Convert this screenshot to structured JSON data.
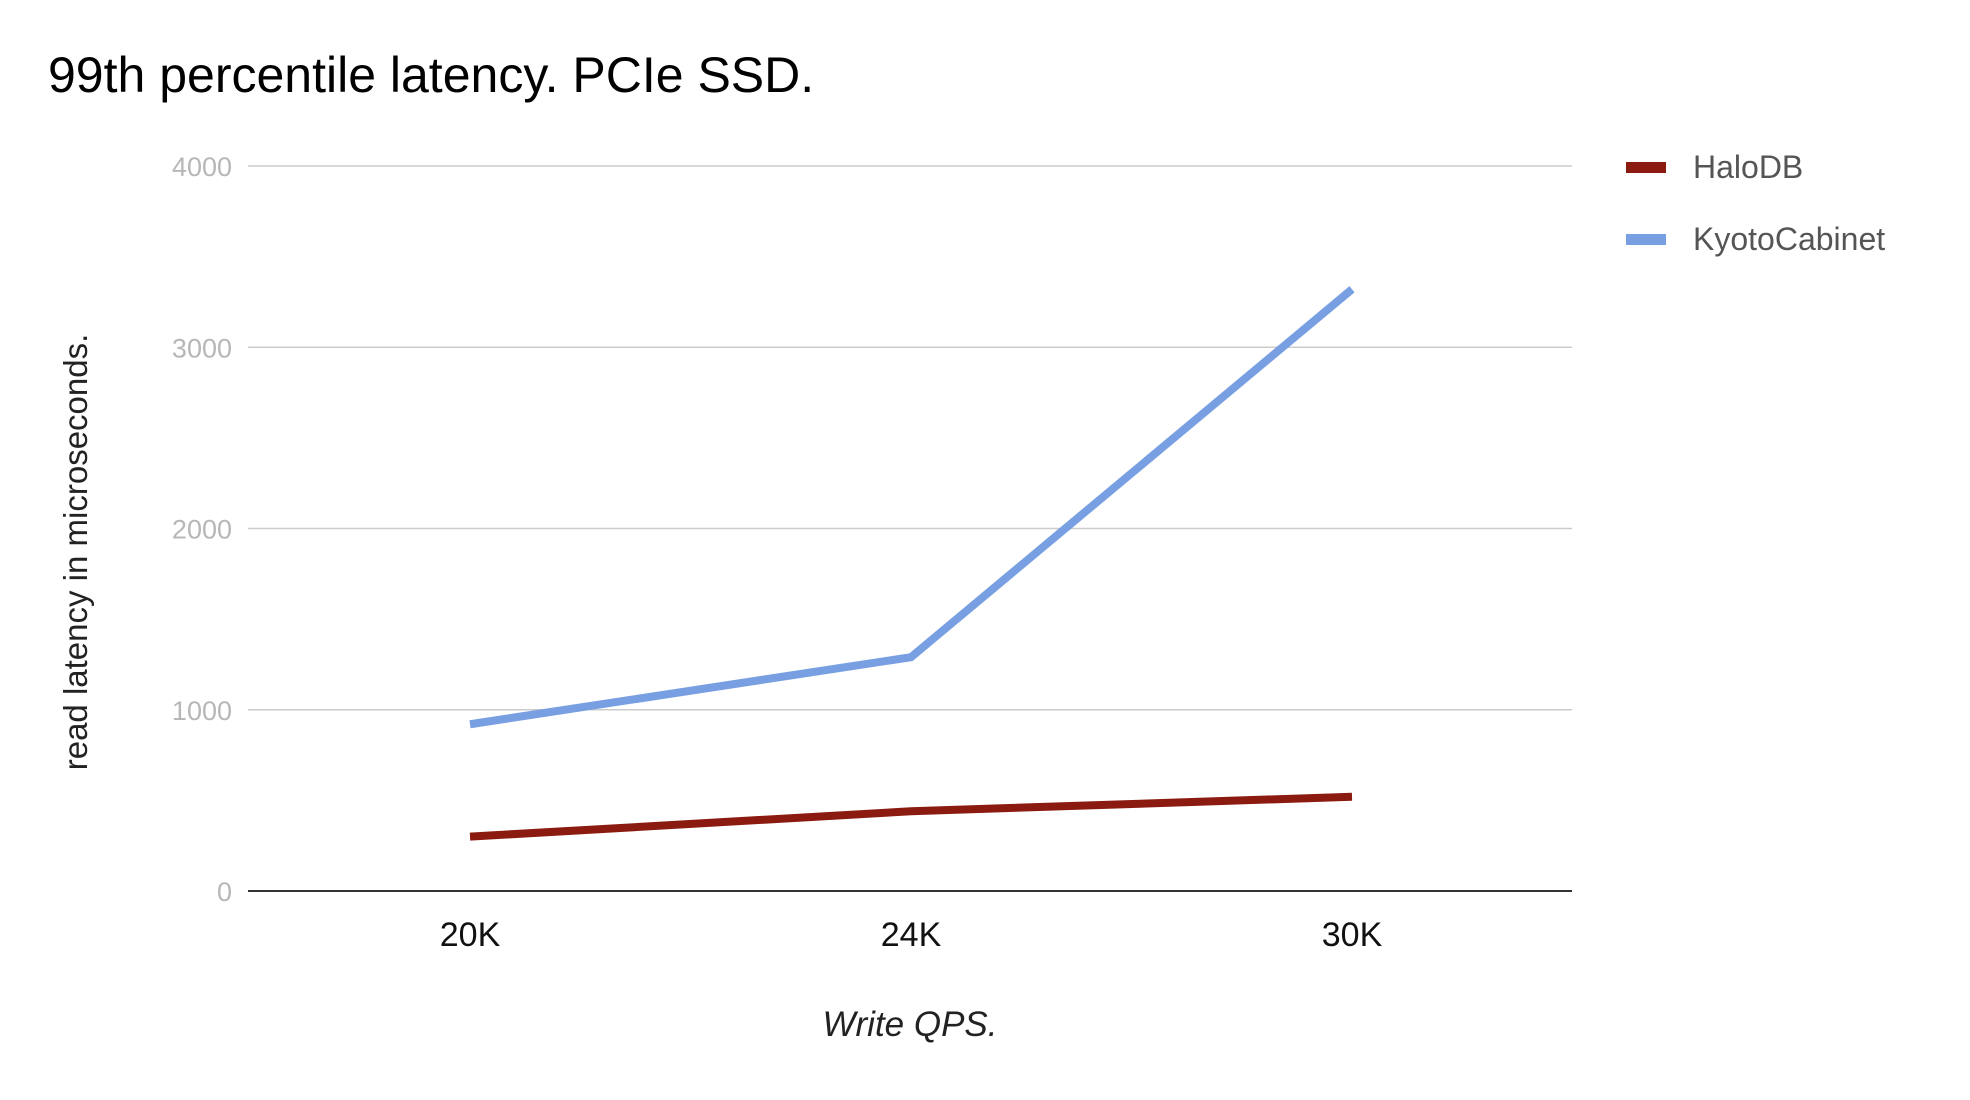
{
  "chart_data": {
    "type": "line",
    "title": "99th percentile latency. PCIe SSD.",
    "xlabel": "Write QPS.",
    "ylabel": "read latency in microseconds.",
    "categories": [
      "20K",
      "24K",
      "30K"
    ],
    "ylim": [
      0,
      4000
    ],
    "yticks": [
      0,
      1000,
      2000,
      3000,
      4000
    ],
    "grid": true,
    "legend_position": "right",
    "series": [
      {
        "name": "HaloDB",
        "color": "#8b1a10",
        "values": [
          300,
          440,
          520
        ]
      },
      {
        "name": "KyotoCabinet",
        "color": "#779fe2",
        "values": [
          920,
          1290,
          3320
        ]
      }
    ]
  }
}
